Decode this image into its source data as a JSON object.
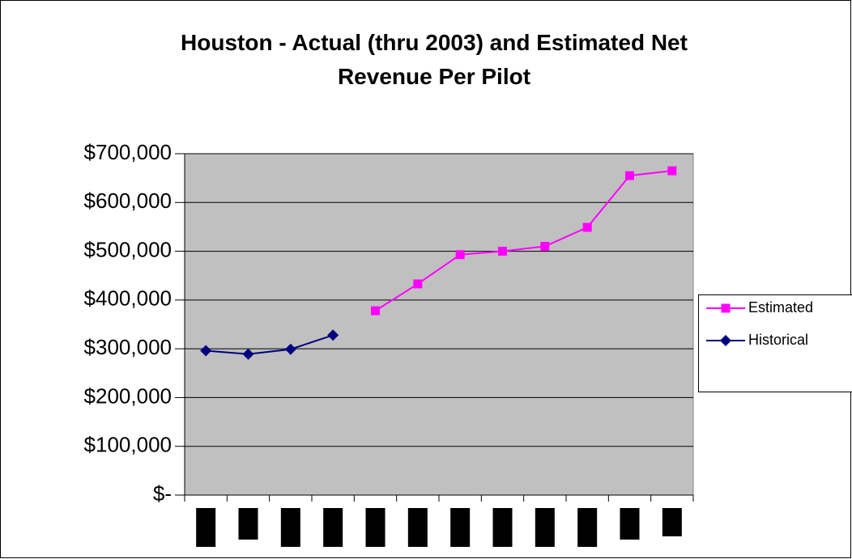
{
  "chart_data": {
    "type": "line",
    "title": "Houston - Actual (thru 2003) and Estimated Net Revenue Per Pilot",
    "categories": [
      null,
      null,
      null,
      null,
      null,
      null,
      null,
      null,
      null,
      null,
      null,
      null
    ],
    "series": [
      {
        "name": "Estimated",
        "color": "#ff00ff",
        "marker": "square",
        "values": [
          null,
          null,
          null,
          null,
          378000,
          433000,
          493000,
          500000,
          510000,
          549000,
          655000,
          665000
        ]
      },
      {
        "name": "Historical",
        "color": "#000080",
        "marker": "diamond",
        "values": [
          296000,
          289000,
          299000,
          328000,
          null,
          null,
          null,
          null,
          null,
          null,
          null,
          null
        ]
      }
    ],
    "ylim": [
      0,
      700000
    ],
    "yticks": [
      {
        "value": 0,
        "label": "$-"
      },
      {
        "value": 100000,
        "label": "$100,000"
      },
      {
        "value": 200000,
        "label": "$200,000"
      },
      {
        "value": 300000,
        "label": "$300,000"
      },
      {
        "value": 400000,
        "label": "$400,000"
      },
      {
        "value": 500000,
        "label": "$500,000"
      },
      {
        "value": 600000,
        "label": "$600,000"
      },
      {
        "value": 700000,
        "label": "$700,000"
      }
    ],
    "grid": true,
    "legend": "right"
  }
}
